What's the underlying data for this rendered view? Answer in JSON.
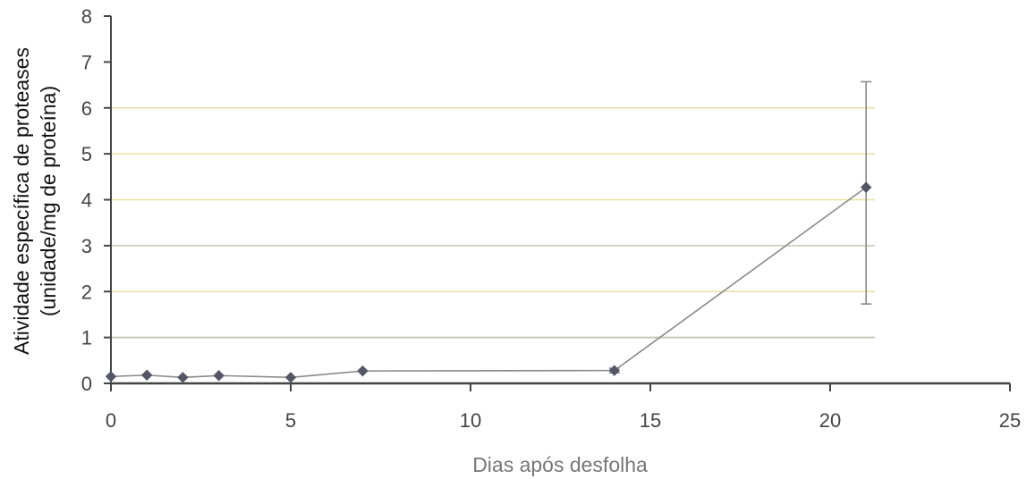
{
  "chart_data": {
    "type": "line",
    "xlabel": "Dias após desfolha",
    "ylabel_line1": "Atividade específica de proteases",
    "ylabel_line2": "(unidade/mg de proteína)",
    "xlim": [
      0,
      25
    ],
    "ylim": [
      0,
      8
    ],
    "x_ticks": [
      0,
      5,
      10,
      15,
      20,
      25
    ],
    "y_ticks": [
      0,
      1,
      2,
      3,
      4,
      5,
      6,
      7,
      8
    ],
    "grid": true,
    "legend": "none",
    "series": [
      {
        "points": [
          {
            "x": 0,
            "y": 0.15
          },
          {
            "x": 1,
            "y": 0.18
          },
          {
            "x": 2,
            "y": 0.13
          },
          {
            "x": 3,
            "y": 0.17
          },
          {
            "x": 5,
            "y": 0.13
          },
          {
            "x": 7,
            "y": 0.27
          },
          {
            "x": 14,
            "y": 0.28,
            "err_low": 0.23,
            "err_high": 0.33
          },
          {
            "x": 21,
            "y": 4.27,
            "err_low": 1.73,
            "err_high": 6.57
          }
        ]
      }
    ],
    "colors": {
      "axis": "#444444",
      "line": "#8a8a8a",
      "marker": "#555566",
      "grid": "#c8c8b4",
      "grid_alt": "#e8dfa0"
    }
  }
}
